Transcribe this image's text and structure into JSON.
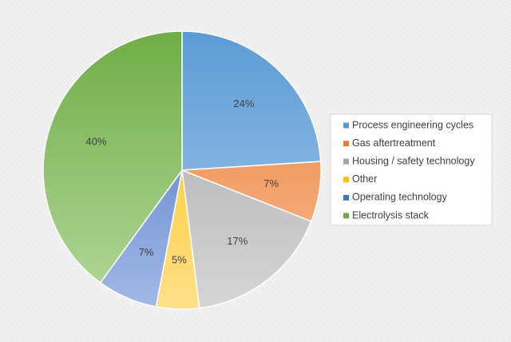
{
  "chart_data": {
    "type": "pie",
    "title": "",
    "legend_position": "right",
    "start_angle_deg": 0,
    "direction": "clockwise",
    "slices": [
      {
        "label": "Process engineering cycles",
        "value": 24,
        "value_label": "24%",
        "color": "#5B9BD5",
        "color_light": "#A9CBEB"
      },
      {
        "label": "Gas aftertreatment",
        "value": 7,
        "value_label": "7%",
        "color": "#ED7D31",
        "color_light": "#F7BF99"
      },
      {
        "label": "Housing / safety technology",
        "value": 17,
        "value_label": "17%",
        "color": "#A5A5A5",
        "color_light": "#D6D6D6"
      },
      {
        "label": "Other",
        "value": 5,
        "value_label": "5%",
        "color": "#FFC000",
        "color_light": "#FFE08A"
      },
      {
        "label": "Operating technology",
        "value": 7,
        "value_label": "7%",
        "color": "#4472C4",
        "color_light": "#A3B9E6"
      },
      {
        "label": "Electrolysis stack",
        "value": 40,
        "value_label": "40%",
        "color": "#70AD47",
        "color_light": "#B4D89B"
      }
    ]
  }
}
